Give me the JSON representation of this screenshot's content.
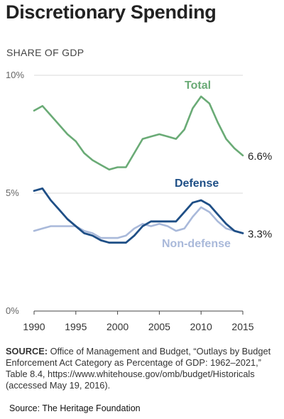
{
  "title": "Discretionary Spending",
  "subtitle": "SHARE OF GDP",
  "source_label": "SOURCE:",
  "source_text": "Office of Management and Budget, “Outlays by Budget Enforcement Act Category as Percentage of GDP: 1962–2021,” Table 8.4, https://www.whitehouse.gov/omb/budget/Historicals (accessed May 19, 2016).",
  "credit": "Source: The Heritage Foundation",
  "colors": {
    "total": "#6aab76",
    "defense": "#1f4f86",
    "nondefense": "#a9b9da",
    "axis": "#444444",
    "grid": "#cccccc"
  },
  "chart_data": {
    "type": "line",
    "title": "Discretionary Spending",
    "subtitle": "SHARE OF GDP",
    "xlim": [
      1990,
      2015
    ],
    "ylim": [
      0,
      10
    ],
    "x_ticks": [
      1990,
      1995,
      2000,
      2005,
      2010,
      2015
    ],
    "y_ticks": [
      {
        "value": 0,
        "label": "0%"
      },
      {
        "value": 5,
        "label": "5%"
      },
      {
        "value": 10,
        "label": "10%"
      }
    ],
    "x": [
      1990,
      1991,
      1992,
      1993,
      1994,
      1995,
      1996,
      1997,
      1998,
      1999,
      2000,
      2001,
      2002,
      2003,
      2004,
      2005,
      2006,
      2007,
      2008,
      2009,
      2010,
      2011,
      2012,
      2013,
      2014,
      2015
    ],
    "series": [
      {
        "name": "Total",
        "end_label": "6.6%",
        "values": [
          8.5,
          8.7,
          8.3,
          7.9,
          7.5,
          7.2,
          6.7,
          6.4,
          6.2,
          6.0,
          6.1,
          6.1,
          6.7,
          7.3,
          7.4,
          7.5,
          7.4,
          7.3,
          7.7,
          8.6,
          9.1,
          8.8,
          8.0,
          7.3,
          6.9,
          6.6
        ]
      },
      {
        "name": "Defense",
        "end_label": "3.3%",
        "values": [
          5.1,
          5.2,
          4.7,
          4.3,
          3.9,
          3.6,
          3.3,
          3.2,
          3.0,
          2.9,
          2.9,
          2.9,
          3.2,
          3.6,
          3.8,
          3.8,
          3.8,
          3.8,
          4.2,
          4.6,
          4.7,
          4.5,
          4.1,
          3.7,
          3.4,
          3.3
        ]
      },
      {
        "name": "Non-defense",
        "values": [
          3.4,
          3.5,
          3.6,
          3.6,
          3.6,
          3.6,
          3.4,
          3.3,
          3.1,
          3.1,
          3.1,
          3.2,
          3.5,
          3.7,
          3.6,
          3.7,
          3.6,
          3.4,
          3.5,
          4.0,
          4.4,
          4.2,
          3.8,
          3.5,
          3.4,
          3.3
        ]
      }
    ]
  }
}
